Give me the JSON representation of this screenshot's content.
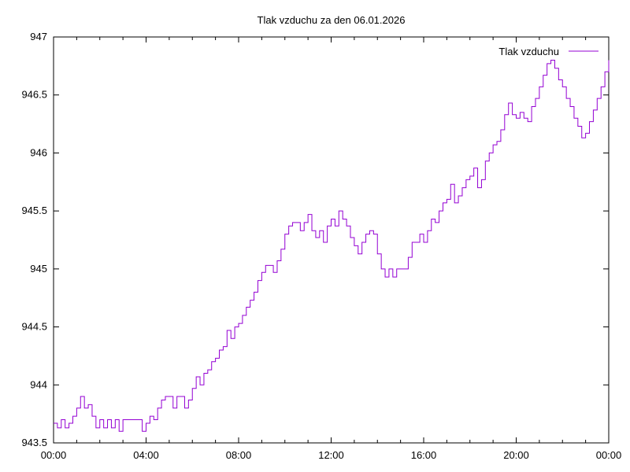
{
  "chart_data": {
    "type": "line",
    "title": "Tlak vzduchu za den 06.01.2026",
    "xlabel": "",
    "ylabel": "",
    "xlim_hours": [
      0,
      24
    ],
    "ylim": [
      943.5,
      947
    ],
    "x_tick_hours": [
      0,
      4,
      8,
      12,
      16,
      20,
      24
    ],
    "x_tick_labels": [
      "00:00",
      "04:00",
      "08:00",
      "12:00",
      "16:00",
      "20:00",
      "00:00"
    ],
    "x_minor_tick_every_hours": 1,
    "y_ticks": [
      943.5,
      944,
      944.5,
      945,
      945.5,
      946,
      946.5,
      947
    ],
    "y_tick_labels": [
      "943.5",
      "944",
      "944.5",
      "945",
      "945.5",
      "946",
      "946.5",
      "947"
    ],
    "grid": "off",
    "legend": {
      "label": "Tlak vzduchu",
      "position": "top-right"
    },
    "colors": {
      "line": "#9400d3",
      "axis": "#000000",
      "background": "#ffffff",
      "text": "#000000"
    },
    "series": [
      {
        "name": "Tlak vzduchu",
        "start": "00:00",
        "interval_minutes": 10,
        "style": "steps",
        "values": [
          943.67,
          943.63,
          943.7,
          943.63,
          943.67,
          943.73,
          943.8,
          943.9,
          943.8,
          943.83,
          943.73,
          943.63,
          943.7,
          943.63,
          943.7,
          943.63,
          943.7,
          943.6,
          943.7,
          943.7,
          943.7,
          943.7,
          943.7,
          943.6,
          943.67,
          943.73,
          943.7,
          943.8,
          943.87,
          943.9,
          943.9,
          943.8,
          943.9,
          943.9,
          943.8,
          943.87,
          943.97,
          944.07,
          944.0,
          944.1,
          944.13,
          944.2,
          944.23,
          944.3,
          944.33,
          944.47,
          944.4,
          944.5,
          944.53,
          944.6,
          944.67,
          944.73,
          944.8,
          944.9,
          944.97,
          945.03,
          945.03,
          944.97,
          945.07,
          945.17,
          945.3,
          945.37,
          945.4,
          945.4,
          945.33,
          945.4,
          945.47,
          945.33,
          945.27,
          945.33,
          945.23,
          945.37,
          945.43,
          945.37,
          945.5,
          945.43,
          945.37,
          945.27,
          945.2,
          945.13,
          945.23,
          945.3,
          945.33,
          945.3,
          945.13,
          945.0,
          944.93,
          945.0,
          944.93,
          945.0,
          945.0,
          945.0,
          945.1,
          945.23,
          945.23,
          945.3,
          945.23,
          945.33,
          945.43,
          945.4,
          945.5,
          945.57,
          945.6,
          945.73,
          945.57,
          945.63,
          945.7,
          945.77,
          945.8,
          945.87,
          945.7,
          945.77,
          945.93,
          946.0,
          946.07,
          946.1,
          946.2,
          946.33,
          946.43,
          946.33,
          946.3,
          946.35,
          946.3,
          946.27,
          946.4,
          946.47,
          946.57,
          946.67,
          946.77,
          946.8,
          946.73,
          946.63,
          946.57,
          946.47,
          946.4,
          946.3,
          946.23,
          946.13,
          946.17,
          946.27,
          946.37,
          946.47,
          946.57,
          946.7,
          946.8
        ]
      }
    ]
  }
}
